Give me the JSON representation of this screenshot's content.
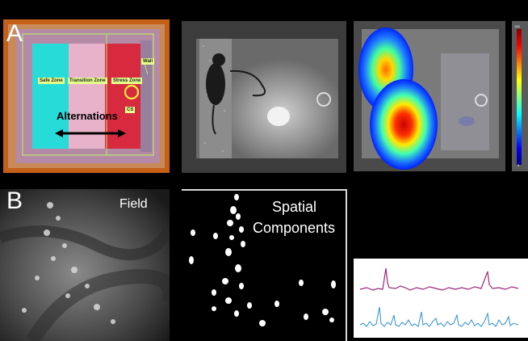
{
  "panel_a": {
    "letter": "A",
    "zones": {
      "safe": "Safe Zone",
      "transition": "Transition Zone",
      "stress": "Stress Zone",
      "wall": "Wall",
      "cs": "CS"
    },
    "alternations": "Alternations"
  },
  "heatmap_scale": {
    "max": "145",
    "min": "0"
  },
  "panel_b": {
    "letter": "B",
    "field_label": "Field",
    "spatial_label_line1": "Spatial",
    "spatial_label_line2": "Components"
  },
  "colors": {
    "safe_zone": "#22e0e0",
    "transition_zone": "#e7b0c8",
    "stress_zone": "#d8203c",
    "arena_orange": "#c9621a",
    "trace_magenta": "#a0267a",
    "trace_blue": "#2a8fd0"
  }
}
